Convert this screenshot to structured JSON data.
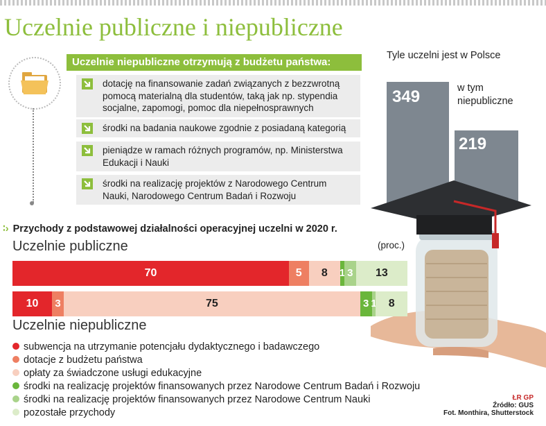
{
  "title": "Uczelnie publiczne i niepubliczne",
  "info": {
    "header": "Uczelnie niepubliczne otrzymują z budżetu państwa:",
    "items": [
      "dotację na finansowanie zadań związanych z bezzwrotną pomocą materialną dla studentów, taką jak np. stypendia socjalne, zapomogi, pomoc dla niepełnosprawnych",
      "środki na badania naukowe zgodnie z posiadaną kategorią",
      "pieniądze w ramach różnych programów, np. Ministerstwa Edukacji i Nauki",
      "środki na realizację projektów z Narodowego Centrum Nauki, Narodowego Centrum Badań i Rozwoju"
    ]
  },
  "stats": {
    "total_label": "Tyle uczelni jest w Polsce",
    "total_value": "349",
    "private_label": "w tym niepubliczne",
    "private_value": "219"
  },
  "chart_data": {
    "type": "bar",
    "stacked": true,
    "orientation": "horizontal",
    "title": "Przychody z podstawowej działalności operacyjnej uczelni w 2020 r.",
    "unit": "(proc.)",
    "categories": [
      "Uczelnie publiczne",
      "Uczelnie niepubliczne"
    ],
    "series": [
      {
        "name": "subwencja na utrzymanie potencjału dydaktycznego i badawczego",
        "color": "#e3262b",
        "values": [
          70,
          10
        ]
      },
      {
        "name": "dotacje z budżetu państwa",
        "color": "#ee7f62",
        "values": [
          5,
          3
        ]
      },
      {
        "name": "opłaty za świadczone usługi edukacyjne",
        "color": "#f8cfbf",
        "values": [
          8,
          75
        ]
      },
      {
        "name": "środki na realizację projektów finansowanych przez Narodowe Centrum Badań i Rozwoju",
        "color": "#6ab63b",
        "values": [
          1,
          3
        ]
      },
      {
        "name": "środki na realizację projektów finansowanych przez Narodowe Centrum Nauki",
        "color": "#a9d38a",
        "values": [
          3,
          1
        ]
      },
      {
        "name": "pozostałe przychody",
        "color": "#dcecc9",
        "values": [
          13,
          8
        ]
      }
    ]
  },
  "credit": {
    "logo": "ŁR GP",
    "source": "Źródło: GUS",
    "photo": "Fot. Monthira, Shutterstock"
  }
}
